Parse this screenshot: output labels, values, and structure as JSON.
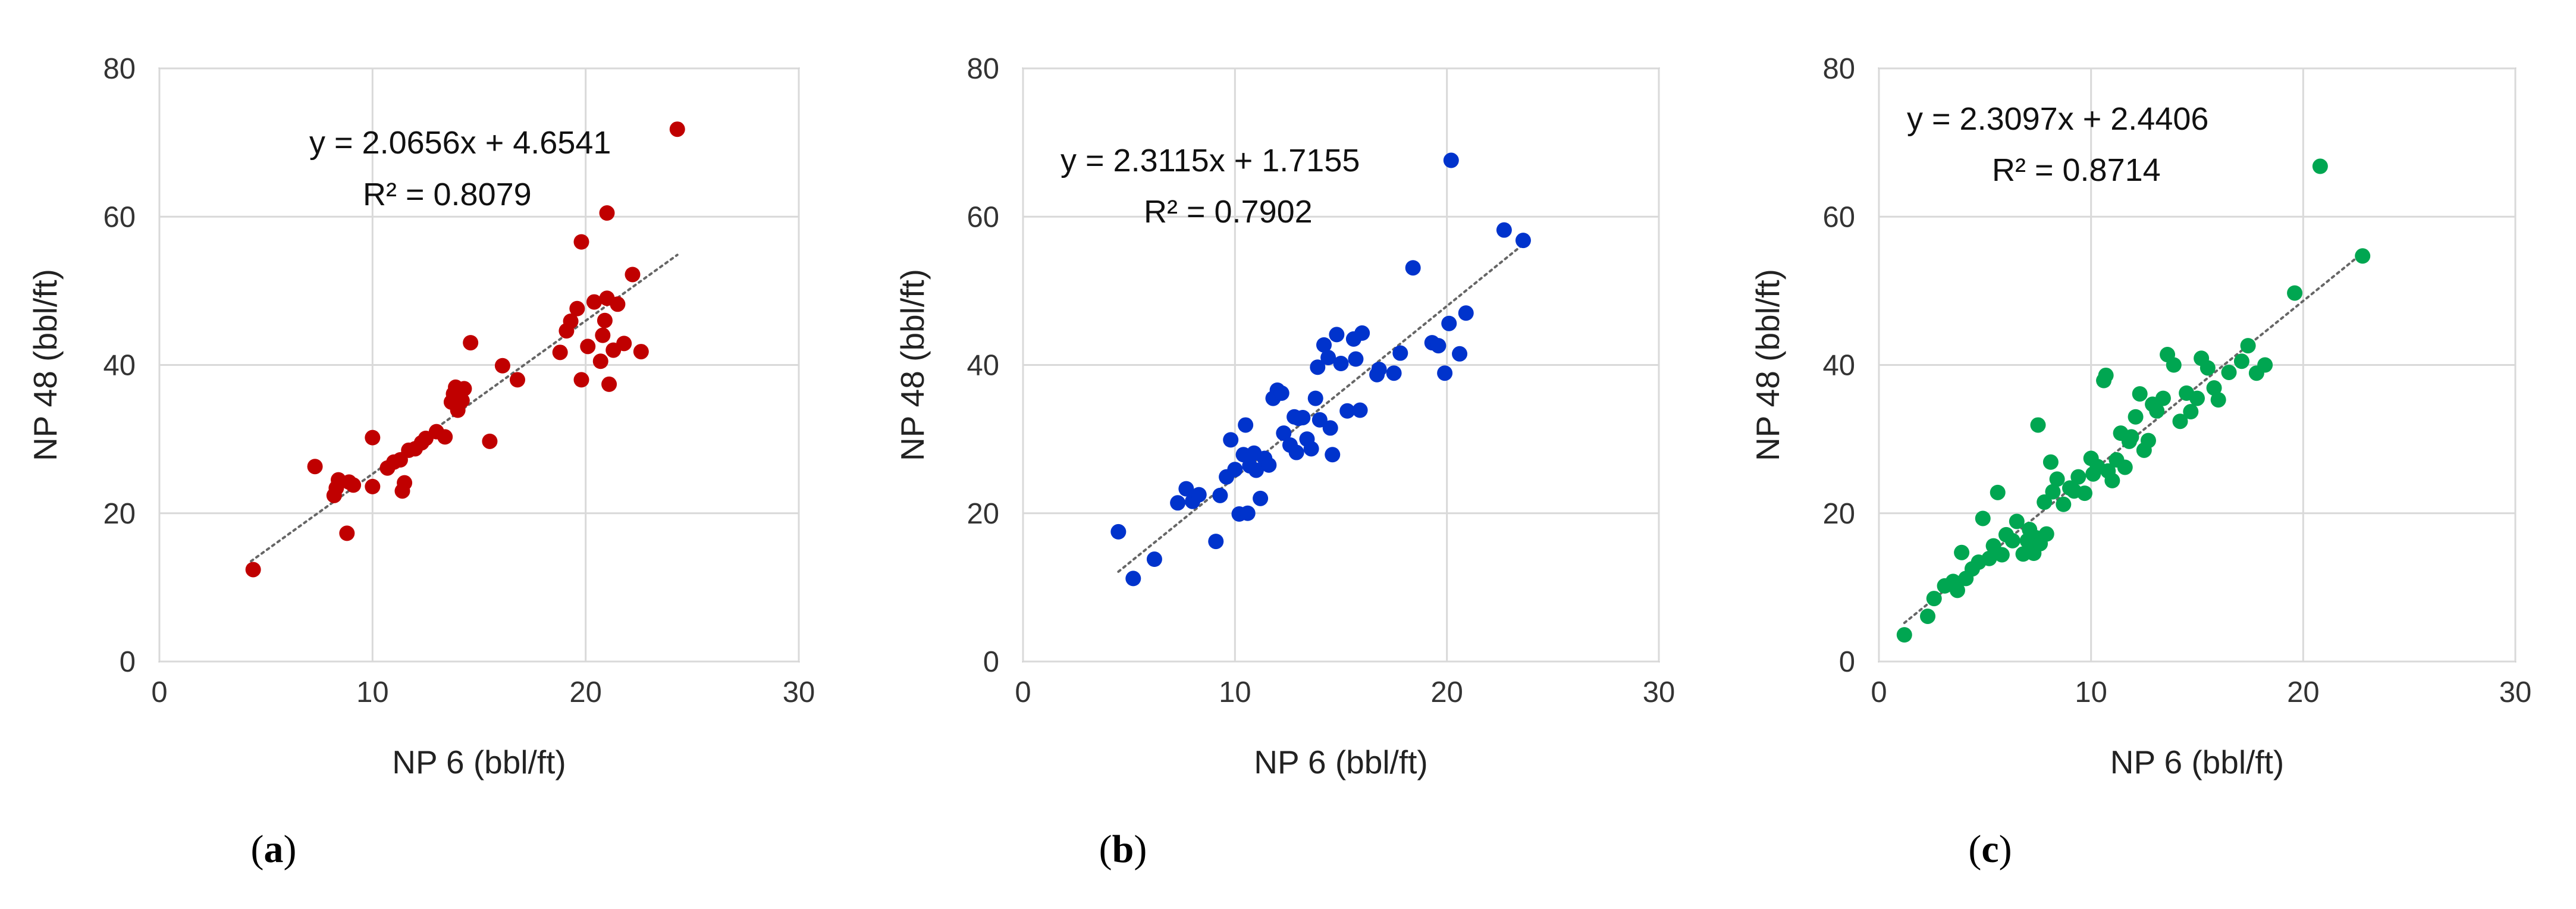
{
  "chart_data": [
    {
      "type": "scatter",
      "panel_label": "a",
      "xlabel": "NP 6 (bbl/ft)",
      "ylabel": "NP 48 (bbl/ft)",
      "xlim": [
        0,
        30
      ],
      "ylim": [
        0,
        80
      ],
      "xticks": [
        0,
        10,
        20,
        30
      ],
      "yticks": [
        0,
        20,
        40,
        60,
        80
      ],
      "grid": true,
      "color": "#c00000",
      "equation": "y = 2.0656x + 4.6541",
      "r_squared": "R² = 0.8079",
      "trendline": {
        "slope": 2.0656,
        "intercept": 4.6541,
        "x_range": [
          4.3,
          24.3
        ]
      },
      "points": [
        [
          4.4,
          12.4
        ],
        [
          7.3,
          26.3
        ],
        [
          8.2,
          22.4
        ],
        [
          8.3,
          23.4
        ],
        [
          8.4,
          24.5
        ],
        [
          8.8,
          17.3
        ],
        [
          8.9,
          24.2
        ],
        [
          9.1,
          23.8
        ],
        [
          10.0,
          23.6
        ],
        [
          10.0,
          30.2
        ],
        [
          10.7,
          26.1
        ],
        [
          11.0,
          26.9
        ],
        [
          11.3,
          27.2
        ],
        [
          11.4,
          23.0
        ],
        [
          11.5,
          24.1
        ],
        [
          11.7,
          28.5
        ],
        [
          12.0,
          28.7
        ],
        [
          12.3,
          29.5
        ],
        [
          12.5,
          30.1
        ],
        [
          13.0,
          31.0
        ],
        [
          13.4,
          30.3
        ],
        [
          13.7,
          35.0
        ],
        [
          13.8,
          36.1
        ],
        [
          13.9,
          37.0
        ],
        [
          14.0,
          33.9
        ],
        [
          14.2,
          35.2
        ],
        [
          14.3,
          36.8
        ],
        [
          14.6,
          43.0
        ],
        [
          15.5,
          29.7
        ],
        [
          16.1,
          39.9
        ],
        [
          16.8,
          38.0
        ],
        [
          18.8,
          41.7
        ],
        [
          19.1,
          44.6
        ],
        [
          19.3,
          45.9
        ],
        [
          19.6,
          47.6
        ],
        [
          19.8,
          38.0
        ],
        [
          19.8,
          56.6
        ],
        [
          20.1,
          42.5
        ],
        [
          20.4,
          48.5
        ],
        [
          20.7,
          40.5
        ],
        [
          20.8,
          44.0
        ],
        [
          20.9,
          46.0
        ],
        [
          21.0,
          60.5
        ],
        [
          21.0,
          49.0
        ],
        [
          21.1,
          37.4
        ],
        [
          21.3,
          42.0
        ],
        [
          21.5,
          48.2
        ],
        [
          21.8,
          42.9
        ],
        [
          22.2,
          52.2
        ],
        [
          22.6,
          41.8
        ],
        [
          24.3,
          71.8
        ]
      ]
    },
    {
      "type": "scatter",
      "panel_label": "b",
      "xlabel": "NP 6 (bbl/ft)",
      "ylabel": "NP 48 (bbl/ft)",
      "xlim": [
        0,
        30
      ],
      "ylim": [
        0,
        80
      ],
      "xticks": [
        0,
        10,
        20,
        30
      ],
      "yticks": [
        0,
        20,
        40,
        60,
        80
      ],
      "grid": true,
      "color": "#0033cc",
      "equation": "y = 2.3115x + 1.7155",
      "r_squared": "R² = 0.7902",
      "trendline": {
        "slope": 2.3115,
        "intercept": 1.7155,
        "x_range": [
          4.5,
          23.7
        ]
      },
      "points": [
        [
          4.5,
          17.5
        ],
        [
          5.2,
          11.2
        ],
        [
          6.2,
          13.8
        ],
        [
          7.3,
          21.4
        ],
        [
          7.7,
          23.3
        ],
        [
          8.0,
          21.6
        ],
        [
          8.3,
          22.5
        ],
        [
          9.1,
          16.2
        ],
        [
          9.3,
          22.4
        ],
        [
          9.6,
          24.9
        ],
        [
          9.8,
          29.9
        ],
        [
          10.0,
          25.9
        ],
        [
          10.2,
          19.9
        ],
        [
          10.4,
          27.9
        ],
        [
          10.5,
          31.9
        ],
        [
          10.6,
          20.0
        ],
        [
          10.7,
          26.4
        ],
        [
          10.9,
          28.1
        ],
        [
          11.0,
          25.8
        ],
        [
          11.2,
          22.0
        ],
        [
          11.4,
          27.4
        ],
        [
          11.6,
          26.5
        ],
        [
          11.8,
          35.5
        ],
        [
          12.0,
          36.6
        ],
        [
          12.2,
          36.2
        ],
        [
          12.3,
          30.8
        ],
        [
          12.6,
          29.2
        ],
        [
          12.8,
          33.0
        ],
        [
          12.9,
          28.2
        ],
        [
          13.0,
          32.8
        ],
        [
          13.2,
          32.9
        ],
        [
          13.4,
          30.0
        ],
        [
          13.6,
          28.7
        ],
        [
          13.8,
          35.5
        ],
        [
          13.9,
          39.7
        ],
        [
          14.0,
          32.6
        ],
        [
          14.2,
          42.7
        ],
        [
          14.4,
          41.0
        ],
        [
          14.5,
          31.5
        ],
        [
          14.6,
          27.9
        ],
        [
          14.8,
          44.1
        ],
        [
          15.0,
          40.2
        ],
        [
          15.3,
          33.8
        ],
        [
          15.6,
          43.5
        ],
        [
          15.7,
          40.8
        ],
        [
          15.9,
          33.9
        ],
        [
          16.0,
          44.3
        ],
        [
          16.7,
          38.7
        ],
        [
          16.8,
          39.4
        ],
        [
          17.5,
          38.9
        ],
        [
          17.8,
          41.6
        ],
        [
          18.4,
          53.1
        ],
        [
          19.3,
          43.0
        ],
        [
          19.6,
          42.6
        ],
        [
          19.9,
          38.9
        ],
        [
          20.1,
          45.6
        ],
        [
          20.2,
          67.6
        ],
        [
          20.6,
          41.5
        ],
        [
          20.9,
          47.0
        ],
        [
          22.7,
          58.2
        ],
        [
          23.6,
          56.8
        ]
      ]
    },
    {
      "type": "scatter",
      "panel_label": "c",
      "xlabel": "NP 6 (bbl/ft)",
      "ylabel": "NP 48 (bbl/ft)",
      "xlim": [
        0,
        30
      ],
      "ylim": [
        0,
        80
      ],
      "xticks": [
        0,
        10,
        20,
        30
      ],
      "yticks": [
        0,
        20,
        40,
        60,
        80
      ],
      "grid": true,
      "color": "#00a651",
      "equation": "y = 2.3097x + 2.4406",
      "r_squared": "R² = 0.8714",
      "trendline": {
        "slope": 2.3097,
        "intercept": 2.4406,
        "x_range": [
          1.2,
          22.8
        ]
      },
      "points": [
        [
          1.2,
          3.6
        ],
        [
          2.3,
          6.1
        ],
        [
          2.6,
          8.5
        ],
        [
          3.1,
          10.2
        ],
        [
          3.5,
          10.8
        ],
        [
          3.7,
          9.6
        ],
        [
          3.9,
          14.7
        ],
        [
          4.1,
          11.2
        ],
        [
          4.4,
          12.5
        ],
        [
          4.7,
          13.4
        ],
        [
          4.9,
          19.3
        ],
        [
          5.2,
          13.9
        ],
        [
          5.4,
          15.6
        ],
        [
          5.6,
          22.8
        ],
        [
          5.8,
          14.4
        ],
        [
          6.0,
          17.1
        ],
        [
          6.3,
          16.3
        ],
        [
          6.5,
          18.9
        ],
        [
          6.8,
          14.5
        ],
        [
          7.0,
          16.3
        ],
        [
          7.1,
          17.8
        ],
        [
          7.2,
          15.2
        ],
        [
          7.3,
          14.6
        ],
        [
          7.4,
          16.7
        ],
        [
          7.5,
          31.9
        ],
        [
          7.6,
          15.9
        ],
        [
          7.8,
          21.5
        ],
        [
          7.9,
          17.2
        ],
        [
          8.1,
          26.9
        ],
        [
          8.2,
          22.9
        ],
        [
          8.4,
          24.6
        ],
        [
          8.7,
          21.2
        ],
        [
          9.0,
          23.4
        ],
        [
          9.2,
          23.0
        ],
        [
          9.4,
          24.9
        ],
        [
          9.7,
          22.7
        ],
        [
          10.0,
          27.4
        ],
        [
          10.1,
          25.3
        ],
        [
          10.3,
          26.3
        ],
        [
          10.6,
          37.9
        ],
        [
          10.7,
          38.6
        ],
        [
          10.8,
          25.7
        ],
        [
          11.0,
          24.4
        ],
        [
          11.2,
          27.2
        ],
        [
          11.4,
          30.8
        ],
        [
          11.6,
          26.2
        ],
        [
          11.8,
          29.7
        ],
        [
          11.9,
          30.3
        ],
        [
          12.1,
          33.0
        ],
        [
          12.3,
          36.1
        ],
        [
          12.5,
          28.5
        ],
        [
          12.7,
          29.8
        ],
        [
          12.9,
          34.7
        ],
        [
          13.1,
          33.8
        ],
        [
          13.4,
          35.5
        ],
        [
          13.6,
          41.4
        ],
        [
          13.9,
          40.0
        ],
        [
          14.2,
          32.4
        ],
        [
          14.5,
          36.2
        ],
        [
          14.7,
          33.7
        ],
        [
          15.0,
          35.5
        ],
        [
          15.2,
          40.9
        ],
        [
          15.5,
          39.6
        ],
        [
          15.8,
          36.9
        ],
        [
          16.0,
          35.3
        ],
        [
          16.5,
          39.0
        ],
        [
          17.1,
          40.5
        ],
        [
          17.4,
          42.6
        ],
        [
          17.8,
          38.9
        ],
        [
          18.2,
          40.0
        ],
        [
          19.6,
          49.7
        ],
        [
          20.8,
          66.8
        ],
        [
          22.8,
          54.7
        ]
      ]
    }
  ]
}
